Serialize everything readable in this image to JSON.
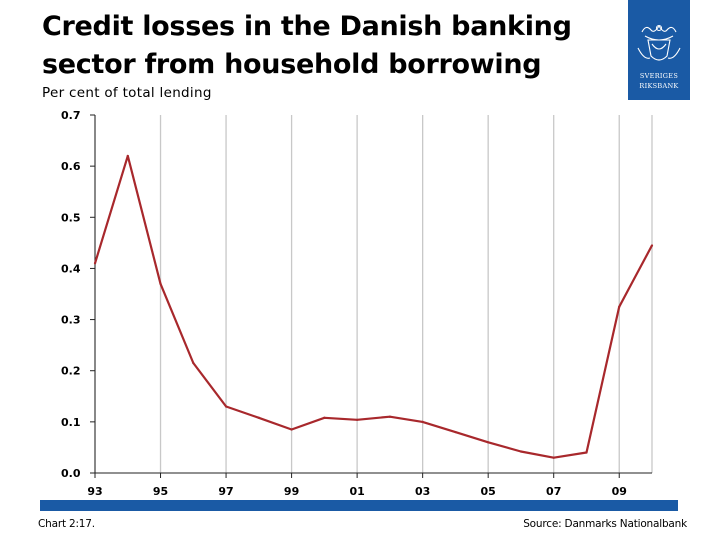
{
  "title": "Credit losses in the Danish banking sector from household borrowing",
  "subtitle": "Per cent of total lending",
  "logo": {
    "line1": "SVERIGES",
    "line2": "RIKSBANK"
  },
  "footer": {
    "chart_number": "Chart 2:17.",
    "source": "Source: Danmarks Nationalbank"
  },
  "colors": {
    "line": "#a8282c",
    "brand": "#1a5aa5",
    "grid": "#c8c8c8"
  },
  "chart_data": {
    "type": "line",
    "title": "Credit losses in the Danish banking sector from household borrowing",
    "ylabel": "Per cent of total lending",
    "xlabel": "",
    "xlim": [
      1993,
      2010
    ],
    "ylim": [
      0,
      0.7
    ],
    "grid": true,
    "x_ticks": [
      {
        "value": 1993,
        "label": "93"
      },
      {
        "value": 1995,
        "label": "95"
      },
      {
        "value": 1997,
        "label": "97"
      },
      {
        "value": 1999,
        "label": "99"
      },
      {
        "value": 2001,
        "label": "01"
      },
      {
        "value": 2003,
        "label": "03"
      },
      {
        "value": 2005,
        "label": "05"
      },
      {
        "value": 2007,
        "label": "07"
      },
      {
        "value": 2009,
        "label": "09"
      }
    ],
    "y_ticks": [
      {
        "value": 0,
        "label": "0.0"
      },
      {
        "value": 0.1,
        "label": "0.1"
      },
      {
        "value": 0.2,
        "label": "0.2"
      },
      {
        "value": 0.3,
        "label": "0.3"
      },
      {
        "value": 0.4,
        "label": "0.4"
      },
      {
        "value": 0.5,
        "label": "0.5"
      },
      {
        "value": 0.6,
        "label": "0.6"
      },
      {
        "value": 0.7,
        "label": "0.7"
      }
    ],
    "series": [
      {
        "x": [
          1993,
          1994,
          1995,
          1996,
          1997,
          1998,
          1999,
          2000,
          2001,
          2002,
          2003,
          2004,
          2005,
          2006,
          2007,
          2008,
          2009,
          2010
        ],
        "values": [
          0.41,
          0.62,
          0.37,
          0.215,
          0.13,
          0.108,
          0.085,
          0.108,
          0.104,
          0.11,
          0.1,
          0.08,
          0.06,
          0.042,
          0.03,
          0.04,
          0.325,
          0.445
        ]
      }
    ]
  }
}
